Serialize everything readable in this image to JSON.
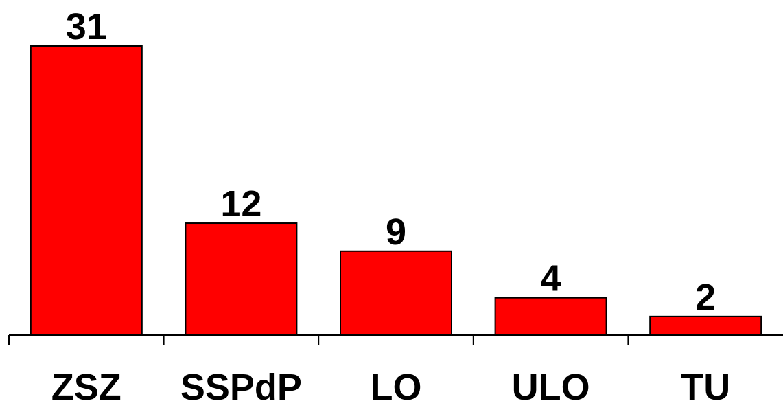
{
  "chart_data": {
    "type": "bar",
    "categories": [
      "ZSZ",
      "SSPdP",
      "LO",
      "ULO",
      "TU"
    ],
    "values": [
      31,
      12,
      9,
      4,
      2
    ],
    "data_labels": [
      "31",
      "12",
      "9",
      "4",
      "2"
    ],
    "title": "",
    "xlabel": "",
    "ylabel": "",
    "ylim": [
      0,
      31
    ],
    "grid": false,
    "legend": "none",
    "bar_color": "#ff0000",
    "bar_edge_color": "#000000",
    "axis_color": "#000000"
  }
}
